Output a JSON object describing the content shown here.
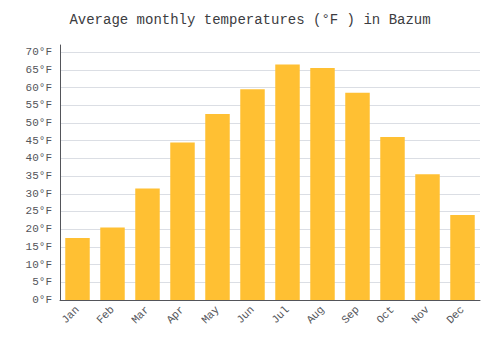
{
  "chart_data": {
    "type": "bar",
    "title": "Average monthly temperatures (°F ) in Bazum",
    "categories": [
      "Jan",
      "Feb",
      "Mar",
      "Apr",
      "May",
      "Jun",
      "Jul",
      "Aug",
      "Sep",
      "Oct",
      "Nov",
      "Dec"
    ],
    "values": [
      17.5,
      20.5,
      31.5,
      44.5,
      52.5,
      59.5,
      66.5,
      65.5,
      58.5,
      46.0,
      35.5,
      24.0
    ],
    "color": "#FFC033",
    "ylim": [
      0,
      72
    ],
    "yticks": [
      {
        "value": 0,
        "label": "0°F"
      },
      {
        "value": 5,
        "label": "5°F"
      },
      {
        "value": 10,
        "label": "10°F"
      },
      {
        "value": 15,
        "label": "15°F"
      },
      {
        "value": 20,
        "label": "20°F"
      },
      {
        "value": 25,
        "label": "25°F"
      },
      {
        "value": 30,
        "label": "30°F"
      },
      {
        "value": 35,
        "label": "35°F"
      },
      {
        "value": 40,
        "label": "40°F"
      },
      {
        "value": 45,
        "label": "45°F"
      },
      {
        "value": 50,
        "label": "50°F"
      },
      {
        "value": 55,
        "label": "55°F"
      },
      {
        "value": 60,
        "label": "60°F"
      },
      {
        "value": 65,
        "label": "65°F"
      },
      {
        "value": 70,
        "label": "70°F"
      }
    ],
    "grid": true
  }
}
